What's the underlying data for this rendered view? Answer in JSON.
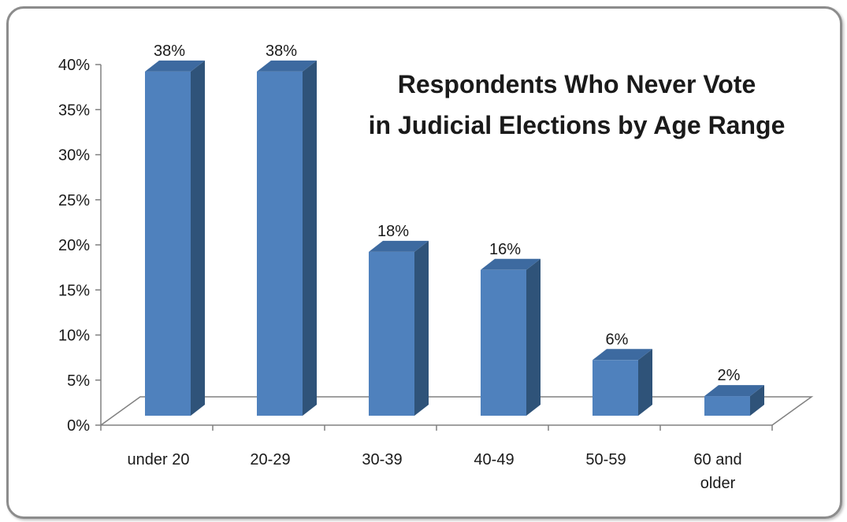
{
  "chart_data": {
    "type": "bar",
    "title_lines": [
      "Respondents Who Never Vote",
      "in Judicial Elections by Age Range"
    ],
    "categories": [
      "under 20",
      "20-29",
      "30-39",
      "40-49",
      "50-59",
      "60 and older"
    ],
    "category_lines": [
      [
        "under 20"
      ],
      [
        "20-29"
      ],
      [
        "30-39"
      ],
      [
        "40-49"
      ],
      [
        "50-59"
      ],
      [
        "60 and",
        "older"
      ]
    ],
    "values": [
      38,
      38,
      18,
      16,
      6,
      2
    ],
    "data_labels": [
      "38%",
      "38%",
      "18%",
      "16%",
      "6%",
      "2%"
    ],
    "ylim": [
      0,
      40
    ],
    "yticks": [
      0,
      5,
      10,
      15,
      20,
      25,
      30,
      35,
      40
    ],
    "ytick_labels": [
      "0%",
      "5%",
      "10%",
      "15%",
      "20%",
      "25%",
      "30%",
      "35%",
      "40%"
    ],
    "xlabel": "",
    "ylabel": "",
    "grid": false,
    "legend": "none",
    "style": "3d-column",
    "colors": {
      "bar_front": "#4f81bd",
      "bar_side": "#2f5379",
      "bar_top": "#3d6aa0",
      "axis": "#808080"
    }
  }
}
